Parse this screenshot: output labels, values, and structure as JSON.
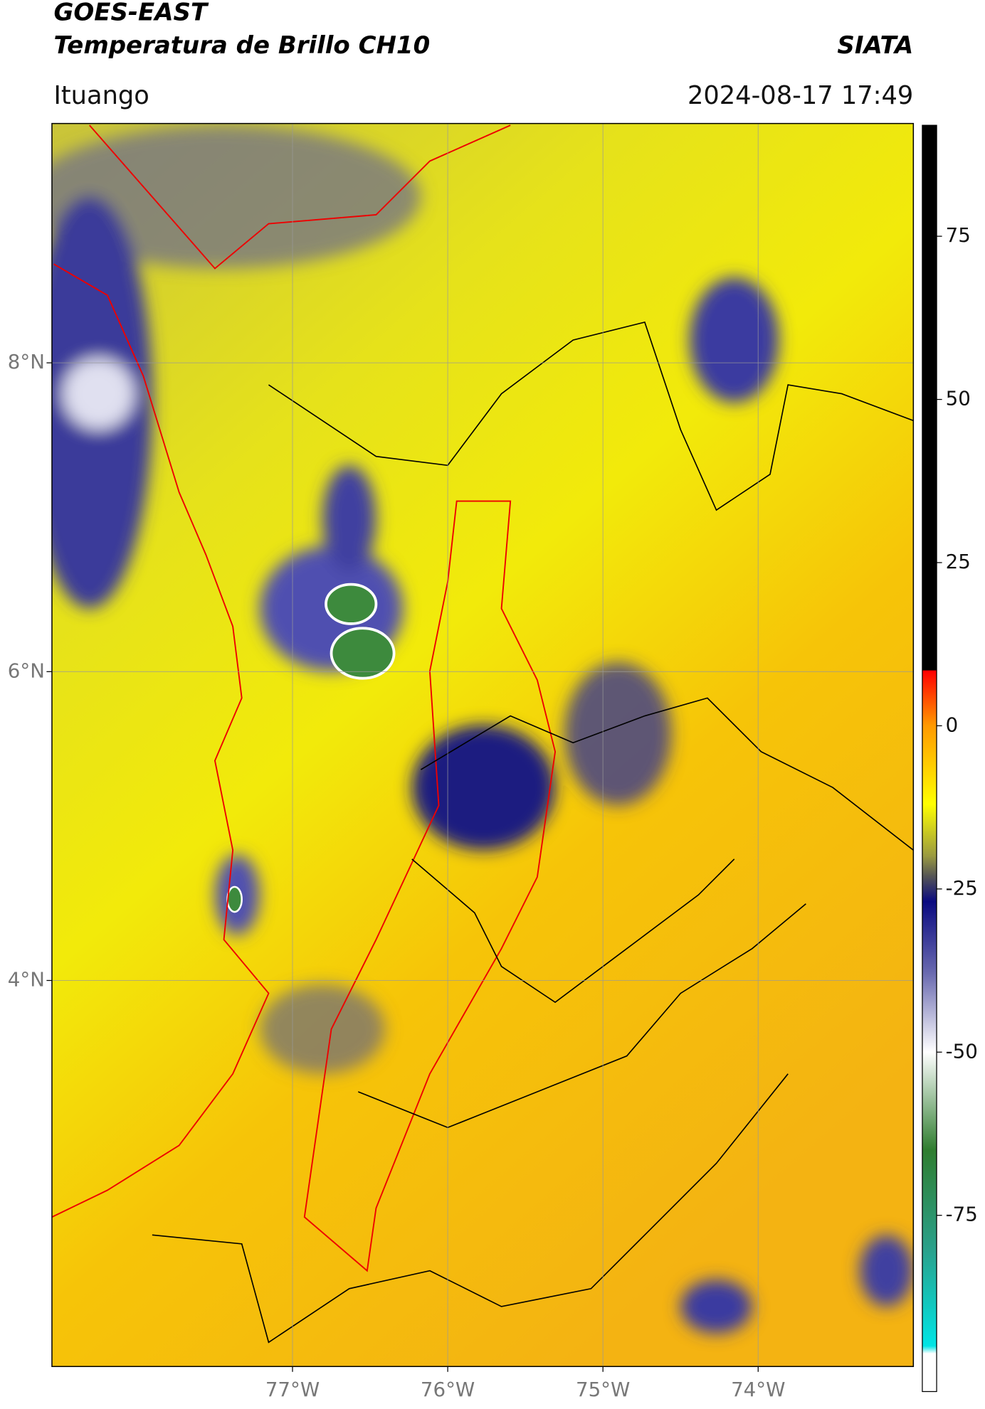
{
  "chart_data": {
    "type": "map",
    "title": "GOES-EAST",
    "subtitle": "Temperatura de Brillo CH10",
    "source": "SIATA",
    "location": "Ituango",
    "datetime": "2024-08-17 17:49",
    "xlim": [
      -78.55,
      -73
    ],
    "ylim": [
      1.5,
      9.55
    ],
    "xticks": [
      {
        "value": -77,
        "label": "77°W"
      },
      {
        "value": -76,
        "label": "76°W"
      },
      {
        "value": -75,
        "label": "75°W"
      },
      {
        "value": -74,
        "label": "74°W"
      }
    ],
    "yticks": [
      {
        "value": 4,
        "label": "4°N"
      },
      {
        "value": 6,
        "label": "6°N"
      },
      {
        "value": 8,
        "label": "8°N"
      }
    ],
    "grid": true,
    "colorbar": {
      "clim": [
        -102,
        92
      ],
      "ticks": [
        -75,
        -50,
        -25,
        0,
        25,
        50,
        75
      ]
    }
  }
}
